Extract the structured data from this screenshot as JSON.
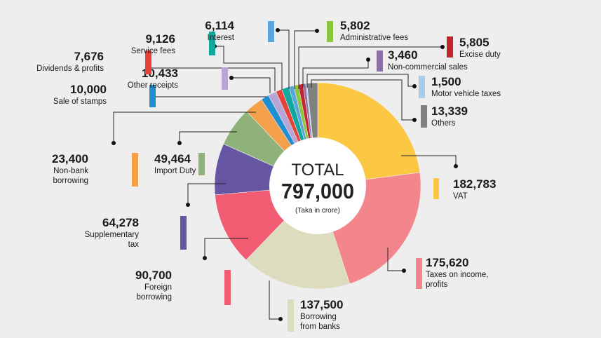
{
  "chart_data": {
    "type": "pie",
    "variant": "donut",
    "title": "TOTAL",
    "total": "797,000",
    "unit": "(Taka in crore)",
    "slices": [
      {
        "key": "vat",
        "value": 182783,
        "value_label": "182,783",
        "label": [
          "VAT"
        ],
        "color": "#fcc844"
      },
      {
        "key": "income-tax",
        "value": 175620,
        "value_label": "175,620",
        "label": [
          "Taxes on income,",
          "profits"
        ],
        "color": "#f3858d"
      },
      {
        "key": "bank-borrowing",
        "value": 137500,
        "value_label": "137,500",
        "label": [
          "Borrowing",
          "from banks"
        ],
        "color": "#dedcbf"
      },
      {
        "key": "foreign-borrowing",
        "value": 90700,
        "value_label": "90,700",
        "label": [
          "Foreign",
          "borrowing"
        ],
        "color": "#f25c73"
      },
      {
        "key": "supplementary-tax",
        "value": 64278,
        "value_label": "64,278",
        "label": [
          "Supplementary",
          "tax"
        ],
        "color": "#6655a3"
      },
      {
        "key": "import-duty",
        "value": 49464,
        "value_label": "49,464",
        "label": [
          "Import Duty"
        ],
        "color": "#8fb27b"
      },
      {
        "key": "non-bank-borrowing",
        "value": 23400,
        "value_label": "23,400",
        "label": [
          "Non-bank",
          "borrowing"
        ],
        "color": "#f4a04a"
      },
      {
        "key": "sale-of-stamps",
        "value": 10000,
        "value_label": "10,000",
        "label": [
          "Sale of stamps"
        ],
        "color": "#1f8fd0"
      },
      {
        "key": "other-receipts",
        "value": 10433,
        "value_label": "10,433",
        "label": [
          "Other receipts"
        ],
        "color": "#b7a5d5"
      },
      {
        "key": "dividends-profits",
        "value": 7676,
        "value_label": "7,676",
        "label": [
          "Dividends & profits"
        ],
        "color": "#e6423a"
      },
      {
        "key": "service-fees",
        "value": 9126,
        "value_label": "9,126",
        "label": [
          "Service fees"
        ],
        "color": "#13a89e"
      },
      {
        "key": "interest",
        "value": 6114,
        "value_label": "6,114",
        "label": [
          "Interest"
        ],
        "color": "#5aa6dc"
      },
      {
        "key": "administrative-fees",
        "value": 5802,
        "value_label": "5,802",
        "label": [
          "Administrative fees"
        ],
        "color": "#8cc63f"
      },
      {
        "key": "excise-duty",
        "value": 5805,
        "value_label": "5,805",
        "label": [
          "Excise duty"
        ],
        "color": "#c1272d"
      },
      {
        "key": "non-commercial-sales",
        "value": 3460,
        "value_label": "3,460",
        "label": [
          "Non-commercial sales"
        ],
        "color": "#8e6fab"
      },
      {
        "key": "motor-vehicle-taxes",
        "value": 1500,
        "value_label": "1,500",
        "label": [
          "Motor vehicle taxes"
        ],
        "color": "#a7cdea"
      },
      {
        "key": "others",
        "value": 13339,
        "value_label": "13,339",
        "label": [
          "Others"
        ],
        "color": "#808080"
      }
    ]
  }
}
